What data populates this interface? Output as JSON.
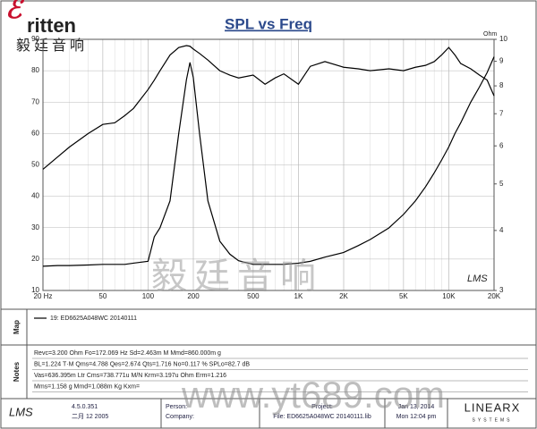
{
  "logo": {
    "brand": "ritten",
    "chinese": "毅廷音响"
  },
  "chart_data": {
    "type": "line",
    "title": "SPL vs Freq",
    "y2_label": "Ohm",
    "log_x": true,
    "y2_log": true,
    "grid": true,
    "x": [
      20,
      25,
      30,
      40,
      50,
      60,
      70,
      80,
      100,
      110,
      120,
      140,
      160,
      180,
      190,
      200,
      220,
      250,
      300,
      350,
      400,
      500,
      600,
      700,
      800,
      1000,
      1200,
      1500,
      2000,
      2500,
      3000,
      4000,
      5000,
      6000,
      7000,
      8000,
      9000,
      10000,
      11000,
      12000,
      14000,
      16000,
      18000,
      20000
    ],
    "series": [
      {
        "color": "#000000",
        "values": [
          48.6,
          52.5,
          55.7,
          60,
          62.9,
          63.4,
          65.7,
          68,
          74,
          77,
          80,
          85,
          87.4,
          88,
          87.8,
          86.9,
          85.5,
          83.4,
          80,
          78.6,
          77.7,
          78.6,
          75.7,
          77.7,
          79,
          75.7,
          81.4,
          82.9,
          81.1,
          80.6,
          80,
          80.6,
          80,
          81.1,
          81.7,
          82.9,
          85.1,
          87.4,
          85,
          82.3,
          80.6,
          78.6,
          77,
          72
        ]
      },
      {
        "color": "#000000",
        "axis": "y2",
        "values": [
          3.37,
          3.38,
          3.38,
          3.39,
          3.4,
          3.4,
          3.4,
          3.42,
          3.45,
          3.88,
          4.05,
          4.61,
          6.37,
          8.24,
          8.95,
          8.32,
          6.37,
          4.61,
          3.8,
          3.57,
          3.46,
          3.4,
          3.4,
          3.4,
          3.4,
          3.42,
          3.45,
          3.52,
          3.6,
          3.72,
          3.83,
          4.05,
          4.32,
          4.61,
          4.93,
          5.27,
          5.62,
          5.97,
          6.37,
          6.7,
          7.4,
          7.96,
          8.53,
          9.2
        ]
      }
    ],
    "xlim": [
      20,
      20000
    ],
    "xticks": [
      {
        "value": 20,
        "label": "20 Hz"
      },
      50,
      100,
      200,
      500,
      {
        "value": 1000,
        "label": "1K"
      },
      {
        "value": 2000,
        "label": "2K"
      },
      {
        "value": 5000,
        "label": "5K"
      },
      {
        "value": 10000,
        "label": "10K"
      },
      {
        "value": 20000,
        "label": "20K"
      }
    ],
    "ylim": [
      10,
      90
    ],
    "yticks": [
      10,
      20,
      30,
      40,
      50,
      60,
      70,
      80,
      90
    ],
    "y2lim": [
      3,
      10
    ],
    "y2ticks": [
      3,
      4,
      5,
      6,
      7,
      8,
      9,
      10
    ],
    "mark": "LMS"
  },
  "map": {
    "label": "Map",
    "legend": "19: ED6625A048WC  20140111"
  },
  "notes": {
    "label": "Notes",
    "lines": [
      "Revc=3.200 Ohm  Fo=172.069 Hz  Sd=2.463m M  Mmd=860.000m g",
      "BL=1.224 T·M  Qms=4.788  Qes=2.674  Qts=1.716  No=0.117 %  SPLo=82.7 dB",
      "Vas=636.395m Ltr  Cms=738.771u M/N  Krm=3.197u Ohm  Erm=1.216",
      "Mms=1.158 g  Mmd=1.088m Kg  Kxm="
    ]
  },
  "footer": {
    "logo": "LMS",
    "version": "4.5.0.351",
    "date": "二月 12 2005",
    "person": "Person:",
    "company": "Company:",
    "project": "Project:",
    "file": "File: ED6625A048WC  20140111.lib",
    "print_date": "Jan 13, 2014",
    "print_time": "Mon 12:04 pm",
    "brand": "LINEARX",
    "brand_sub": "SYSTEMS"
  },
  "watermark": {
    "chinese": "毅廷音响",
    "url": "www.yt689.com"
  }
}
